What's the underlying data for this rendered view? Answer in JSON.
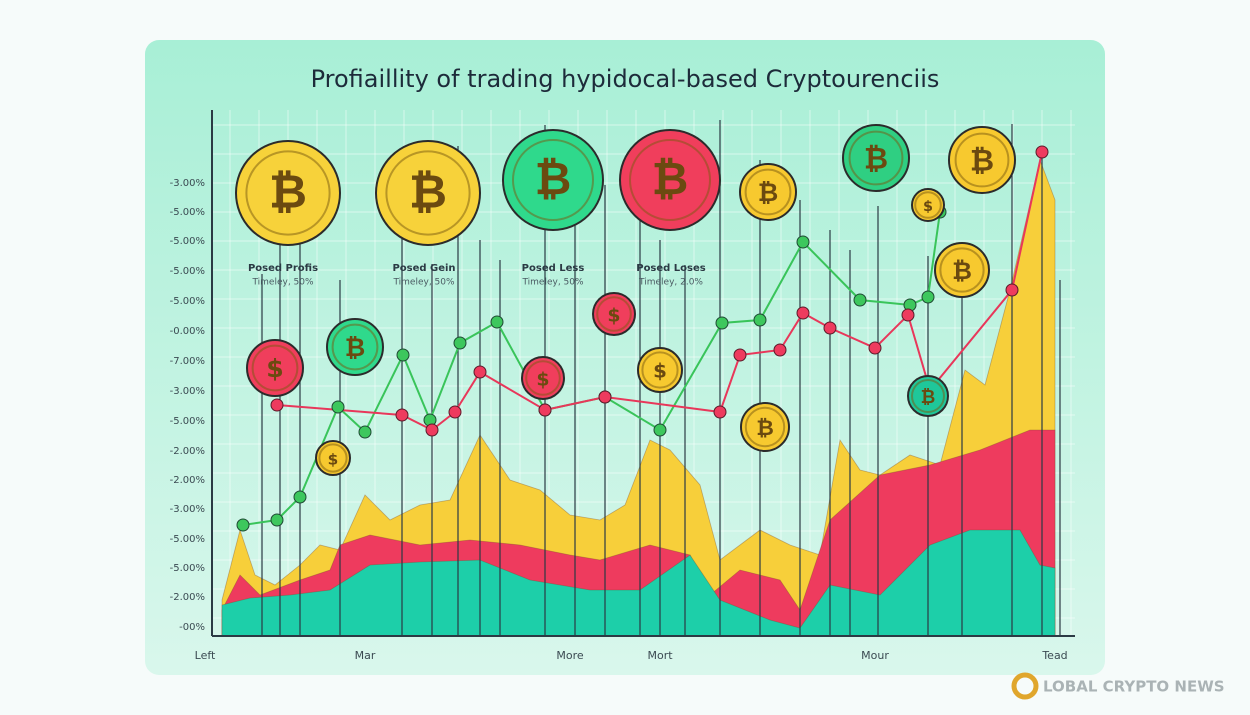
{
  "title": "Profiaillity of trading hypidocal-based Cryptourenciis",
  "y_labels": [
    "-3.00%",
    "-5.00%",
    "-5.00%",
    "-5.00%",
    "-5.00%",
    "-0.00%",
    "-7.00%",
    "-3.00%",
    "-5.00%",
    "-2.00%",
    "-2.00%",
    "-3.00%",
    "-5.00%",
    "-5.00%",
    "-2.00%",
    "-00%"
  ],
  "x_labels": [
    "Left",
    "Mar",
    "More",
    "Mort",
    "Mour",
    "Tead"
  ],
  "coin_labels": [
    {
      "name": "Posed Profis",
      "note": "Timeley, 50%"
    },
    {
      "name": "Posed Gein",
      "note": "Timeley, 50%"
    },
    {
      "name": "Posed Less",
      "note": "Timeley, 50%"
    },
    {
      "name": "Posed Loses",
      "note": "Timeley, 2.0%"
    }
  ],
  "coin_symbols": [
    "₿",
    "$"
  ],
  "watermark": "LOBAL CRYPTO NEWS"
}
